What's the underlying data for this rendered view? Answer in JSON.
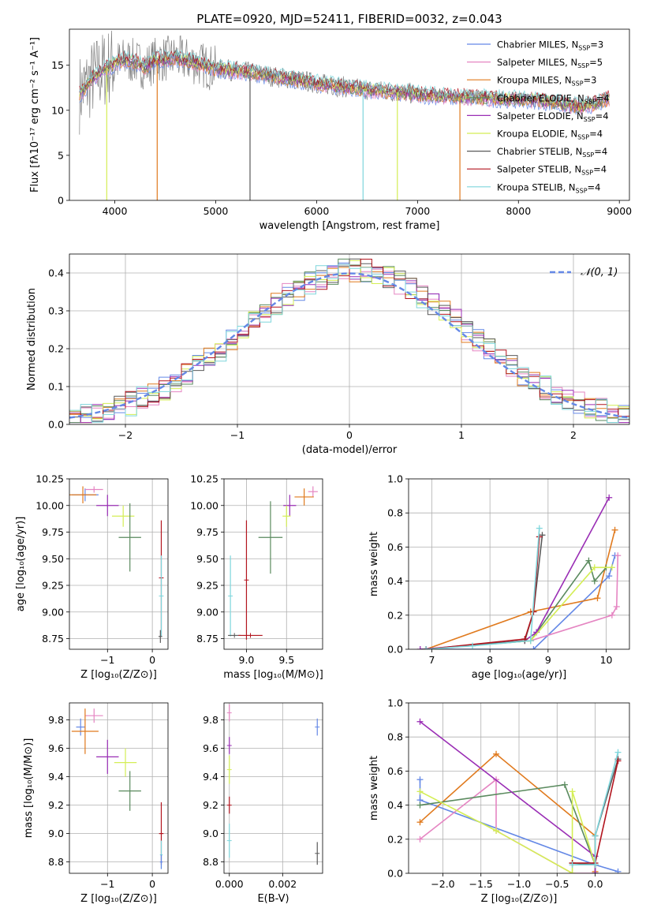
{
  "chart_data": [
    {
      "id": "spectrum",
      "type": "line",
      "title": "PLATE=0920, MJD=52411, FIBERID=0032, z=0.043",
      "xlabel": "wavelength [Angstrom, rest frame]",
      "ylabel": "Flux [fλ10⁻¹⁷ erg cm⁻² s⁻¹ A⁻¹]",
      "xlim": [
        3550,
        9100
      ],
      "ylim": [
        0,
        19
      ],
      "xticks": [
        4000,
        5000,
        6000,
        7000,
        8000,
        9000
      ],
      "yticks": [
        0,
        5,
        10,
        15
      ],
      "grid": false,
      "legend_position": "top-right",
      "data_series": {
        "name": "data",
        "color": "#808080"
      },
      "model_continuum": {
        "x": [
          3650,
          3700,
          3800,
          3900,
          4000,
          4100,
          4200,
          4300,
          4400,
          4500,
          4600,
          4700,
          4800,
          4900,
          5000,
          5200,
          5400,
          5600,
          5800,
          6000,
          6200,
          6400,
          6600,
          6800,
          7000,
          7200,
          7400,
          7600,
          7800,
          8000,
          8200,
          8400,
          8600,
          8800,
          8900
        ],
        "y": [
          11.8,
          12.5,
          13.8,
          14.6,
          15.2,
          15.6,
          15.4,
          14.8,
          15.6,
          15.7,
          15.8,
          15.6,
          15.3,
          14.9,
          14.6,
          14.4,
          14.1,
          13.7,
          13.4,
          13.0,
          12.7,
          12.4,
          12.2,
          12.0,
          11.8,
          11.6,
          11.5,
          11.4,
          11.3,
          11.2,
          11.1,
          10.8,
          10.4,
          10.9,
          11.3
        ]
      },
      "dips": [
        {
          "series": "Kroupa ELODIE",
          "x": 3920
        },
        {
          "series": "Kroupa MILES",
          "x": 4420
        },
        {
          "series": "Chabrier STELIB",
          "x": 5340
        },
        {
          "series": "Kroupa STELIB",
          "x": 6460
        },
        {
          "series": "Kroupa ELODIE",
          "x": 6800
        },
        {
          "series": "Kroupa MILES",
          "x": 7420
        }
      ],
      "series": [
        {
          "name": "Chabrier MILES, N",
          "n_ssp": "3",
          "color": "#6488e6"
        },
        {
          "name": "Salpeter MILES, N",
          "n_ssp": "5",
          "color": "#e585c2"
        },
        {
          "name": "Kroupa MILES, N",
          "n_ssp": "3",
          "color": "#e07a1e"
        },
        {
          "name": "Chabrier ELODIE, N",
          "n_ssp": "4",
          "color": "#5a8a5e"
        },
        {
          "name": "Salpeter ELODIE, N",
          "n_ssp": "4",
          "color": "#9a2eb5"
        },
        {
          "name": "Kroupa ELODIE, N",
          "n_ssp": "4",
          "color": "#d4ee55"
        },
        {
          "name": "Chabrier STELIB, N",
          "n_ssp": "4",
          "color": "#5a5a5a"
        },
        {
          "name": "Salpeter STELIB, N",
          "n_ssp": "4",
          "color": "#b2141e"
        },
        {
          "name": "Kroupa STELIB, N",
          "n_ssp": "4",
          "color": "#7ed6dc"
        }
      ]
    },
    {
      "id": "residuals",
      "type": "histogram",
      "xlabel": "(data-model)/error",
      "ylabel": "Normed distribution",
      "xlim": [
        -2.5,
        2.5
      ],
      "ylim": [
        0,
        0.45
      ],
      "xticks": [
        -2,
        -1,
        0,
        1,
        2
      ],
      "yticks": [
        0.0,
        0.1,
        0.2,
        0.3,
        0.4
      ],
      "grid": true,
      "bin_width": 0.1,
      "legend_label": "𝒩(0, 1)",
      "legend_position": "top-right",
      "reference_curve": {
        "mean": 0,
        "sigma": 1,
        "color": "#6488e6"
      }
    },
    {
      "id": "age-vs-Z",
      "type": "errorbar",
      "xlabel": "Z [log₁₀(Z/Z⊙)]",
      "ylabel": "age  [log₁₀(age/yr)]",
      "xlim": [
        -1.85,
        0.35
      ],
      "ylim": [
        8.65,
        10.25
      ],
      "xticks": [
        -1,
        0
      ],
      "yticks": [
        8.75,
        9.0,
        9.25,
        9.5,
        9.75,
        10.0,
        10.25
      ],
      "grid": true,
      "points": [
        {
          "series": "Chabrier MILES",
          "x": -1.5,
          "y": 10.1,
          "xerr": 0.3,
          "yerr": 0.06
        },
        {
          "series": "Salpeter MILES",
          "x": -1.3,
          "y": 10.15,
          "xerr": 0.2,
          "yerr": 0.03
        },
        {
          "series": "Kroupa MILES",
          "x": -1.55,
          "y": 10.1,
          "xerr": 0.3,
          "yerr": 0.08
        },
        {
          "series": "Salpeter ELODIE",
          "x": -1.0,
          "y": 10.0,
          "xerr": 0.25,
          "yerr": 0.1
        },
        {
          "series": "Kroupa ELODIE",
          "x": -0.65,
          "y": 9.9,
          "xerr": 0.25,
          "yerr": 0.1
        },
        {
          "series": "Chabrier ELODIE",
          "x": -0.5,
          "y": 9.7,
          "xerr": 0.25,
          "yerr": 0.32
        },
        {
          "series": "Salpeter STELIB",
          "x": 0.2,
          "y": 9.32,
          "xerr": 0.0,
          "yerr": 0.54
        },
        {
          "series": "Kroupa STELIB",
          "x": 0.2,
          "y": 9.15,
          "xerr": 0.0,
          "yerr": 0.38
        },
        {
          "series": "Chabrier STELIB",
          "x": 0.18,
          "y": 8.77,
          "xerr": 0.04,
          "yerr": 0.06
        }
      ]
    },
    {
      "id": "age-vs-mass",
      "type": "errorbar",
      "xlabel": "mass [log₁₀(M/M⊙)]",
      "xlim": [
        8.72,
        9.95
      ],
      "ylim": [
        8.65,
        10.25
      ],
      "xticks": [
        9.0,
        9.5
      ],
      "yticks": [
        8.75,
        9.0,
        9.25,
        9.5,
        9.75,
        10.0,
        10.25
      ],
      "grid": true,
      "points": [
        {
          "series": "Salpeter MILES",
          "x": 9.83,
          "y": 10.13,
          "xerr": 0.06,
          "yerr": 0.05
        },
        {
          "series": "Kroupa MILES",
          "x": 9.72,
          "y": 10.08,
          "xerr": 0.12,
          "yerr": 0.08
        },
        {
          "series": "Salpeter ELODIE",
          "x": 9.54,
          "y": 10.0,
          "xerr": 0.08,
          "yerr": 0.1
        },
        {
          "series": "Kroupa ELODIE",
          "x": 9.5,
          "y": 9.9,
          "xerr": 0.05,
          "yerr": 0.1
        },
        {
          "series": "Chabrier ELODIE",
          "x": 9.3,
          "y": 9.7,
          "xerr": 0.15,
          "yerr": 0.34
        },
        {
          "series": "Salpeter STELIB",
          "x": 9.0,
          "y": 9.3,
          "xerr": 0.0,
          "yerr": 0.56
        },
        {
          "series": "Kroupa STELIB",
          "x": 8.8,
          "y": 9.15,
          "xerr": 0.0,
          "yerr": 0.38
        },
        {
          "series": "Chabrier STELIB",
          "x": 8.85,
          "y": 8.78,
          "xerr": 0.08,
          "yerr": 0.0
        },
        {
          "series": "Salpeter STELIB",
          "x": 9.05,
          "y": 8.78,
          "xerr": 0.15,
          "yerr": 0.0
        }
      ]
    },
    {
      "id": "weight-vs-age",
      "type": "line",
      "xlabel": "age  [log₁₀(age/yr)]",
      "ylabel": "mass weight",
      "xlim": [
        6.6,
        10.4
      ],
      "ylim": [
        0,
        1
      ],
      "xticks": [
        7,
        8,
        9,
        10
      ],
      "yticks": [
        0.0,
        0.2,
        0.4,
        0.6,
        0.8,
        1.0
      ],
      "grid": true,
      "series": [
        {
          "name": "Chabrier MILES",
          "x": [
            6.9,
            8.75,
            10.05,
            10.15
          ],
          "y": [
            0.0,
            0.0,
            0.43,
            0.55
          ]
        },
        {
          "name": "Salpeter MILES",
          "x": [
            6.9,
            8.7,
            10.1,
            10.18,
            10.2
          ],
          "y": [
            0.0,
            0.05,
            0.2,
            0.25,
            0.55
          ]
        },
        {
          "name": "Kroupa MILES",
          "x": [
            6.9,
            8.7,
            9.85,
            10.15
          ],
          "y": [
            0.0,
            0.22,
            0.3,
            0.7
          ]
        },
        {
          "name": "Chabrier ELODIE",
          "x": [
            6.9,
            8.7,
            9.7,
            9.8,
            10.0
          ],
          "y": [
            0.0,
            0.05,
            0.52,
            0.4,
            0.48
          ]
        },
        {
          "name": "Salpeter ELODIE",
          "x": [
            6.8,
            8.6,
            8.8,
            10.05
          ],
          "y": [
            0.0,
            0.05,
            0.1,
            0.89
          ]
        },
        {
          "name": "Kroupa ELODIE",
          "x": [
            6.9,
            8.7,
            9.8,
            10.1
          ],
          "y": [
            0.0,
            0.05,
            0.48,
            0.48
          ]
        },
        {
          "name": "Chabrier STELIB",
          "x": [
            6.9,
            8.6,
            8.75,
            8.9
          ],
          "y": [
            0.0,
            0.05,
            0.22,
            0.67
          ]
        },
        {
          "name": "Salpeter STELIB",
          "x": [
            6.9,
            8.6,
            8.75,
            8.85
          ],
          "y": [
            0.0,
            0.06,
            0.22,
            0.66
          ]
        },
        {
          "name": "Kroupa STELIB",
          "x": [
            6.9,
            7.7,
            8.7,
            8.85
          ],
          "y": [
            0.0,
            0.02,
            0.05,
            0.71
          ]
        }
      ]
    },
    {
      "id": "mass-vs-Z",
      "type": "errorbar",
      "xlabel": "Z [log₁₀(Z/Z⊙)]",
      "ylabel": "mass [log₁₀(M/M⊙)]",
      "xlim": [
        -1.85,
        0.35
      ],
      "ylim": [
        8.72,
        9.92
      ],
      "xticks": [
        -1,
        0
      ],
      "yticks": [
        8.8,
        9.0,
        9.2,
        9.4,
        9.6,
        9.8
      ],
      "grid": true,
      "points": [
        {
          "series": "Chabrier MILES",
          "x": -1.6,
          "y": 9.75,
          "xerr": 0.1,
          "yerr": 0.06
        },
        {
          "series": "Salpeter MILES",
          "x": -1.3,
          "y": 9.83,
          "xerr": 0.2,
          "yerr": 0.05
        },
        {
          "series": "Kroupa MILES",
          "x": -1.5,
          "y": 9.72,
          "xerr": 0.3,
          "yerr": 0.16
        },
        {
          "series": "Salpeter ELODIE",
          "x": -1.0,
          "y": 9.54,
          "xerr": 0.25,
          "yerr": 0.12
        },
        {
          "series": "Kroupa ELODIE",
          "x": -0.6,
          "y": 9.5,
          "xerr": 0.25,
          "yerr": 0.1
        },
        {
          "series": "Chabrier ELODIE",
          "x": -0.5,
          "y": 9.3,
          "xerr": 0.25,
          "yerr": 0.14
        },
        {
          "series": "Salpeter STELIB",
          "x": 0.2,
          "y": 9.0,
          "xerr": 0.05,
          "yerr": 0.22
        },
        {
          "series": "Kroupa STELIB",
          "x": 0.2,
          "y": 8.85,
          "xerr": 0.03,
          "yerr": 0.1
        },
        {
          "series": "Chabrier MILES",
          "x": 0.2,
          "y": 8.8,
          "xerr": 0.03,
          "yerr": 0.05
        }
      ]
    },
    {
      "id": "mass-vs-EBV",
      "type": "errorbar",
      "xlabel": "E(B-V)",
      "xlim": [
        -0.0002,
        0.0035
      ],
      "ylim": [
        8.72,
        9.92
      ],
      "xticks": [
        0.0,
        0.002
      ],
      "xtick_labels": [
        "0.000",
        "0.002"
      ],
      "yticks": [
        8.8,
        9.0,
        9.2,
        9.4,
        9.6,
        9.8
      ],
      "grid": true,
      "points": [
        {
          "series": "Salpeter MILES",
          "x": 0.0,
          "y": 9.85,
          "xerr": 0.0,
          "yerr": 0.06
        },
        {
          "series": "Salpeter ELODIE",
          "x": 0.0,
          "y": 9.62,
          "xerr": 0.0,
          "yerr": 0.06
        },
        {
          "series": "Kroupa ELODIE",
          "x": 0.0,
          "y": 9.45,
          "xerr": 0.0,
          "yerr": 0.1
        },
        {
          "series": "Salpeter STELIB",
          "x": 0.0,
          "y": 9.2,
          "xerr": 0.0,
          "yerr": 0.06
        },
        {
          "series": "Kroupa STELIB",
          "x": 0.0,
          "y": 8.95,
          "xerr": 0.0,
          "yerr": 0.12
        },
        {
          "series": "Chabrier MILES",
          "x": 0.0033,
          "y": 9.75,
          "xerr": 0.0,
          "yerr": 0.06
        },
        {
          "series": "Chabrier STELIB",
          "x": 0.0033,
          "y": 8.86,
          "xerr": 0.0,
          "yerr": 0.08
        }
      ]
    },
    {
      "id": "weight-vs-Z",
      "type": "line",
      "xlabel": "Z [log₁₀(Z/Z⊙)]",
      "ylabel": "mass weight",
      "xlim": [
        -2.45,
        0.45
      ],
      "ylim": [
        0,
        1
      ],
      "xticks": [
        -2.0,
        -1.5,
        -1.0,
        -0.5,
        0.0
      ],
      "yticks": [
        0.0,
        0.2,
        0.4,
        0.6,
        0.8,
        1.0
      ],
      "grid": true,
      "series": [
        {
          "name": "Chabrier MILES",
          "x": [
            -2.3,
            -2.3,
            0.0,
            0.3
          ],
          "y": [
            0.55,
            0.43,
            0.05,
            0.01
          ]
        },
        {
          "name": "Salpeter MILES",
          "x": [
            -2.3,
            -1.3,
            -1.3,
            -0.3,
            0.0
          ],
          "y": [
            0.2,
            0.55,
            0.25,
            0.0,
            0.0
          ]
        },
        {
          "name": "Kroupa MILES",
          "x": [
            -2.3,
            -1.3,
            0.0,
            0.0
          ],
          "y": [
            0.3,
            0.7,
            0.22,
            0.01
          ]
        },
        {
          "name": "Chabrier ELODIE",
          "x": [
            -2.3,
            -0.4,
            0.0,
            0.0
          ],
          "y": [
            0.4,
            0.52,
            0.05,
            0.0
          ]
        },
        {
          "name": "Salpeter ELODIE",
          "x": [
            -2.3,
            0.0,
            0.0,
            0.0
          ],
          "y": [
            0.89,
            0.1,
            0.05,
            0.0
          ]
        },
        {
          "name": "Kroupa ELODIE",
          "x": [
            -2.3,
            -1.3,
            -0.3,
            -0.3,
            0.0
          ],
          "y": [
            0.48,
            0.25,
            0.0,
            0.48,
            0.05
          ]
        },
        {
          "name": "Chabrier STELIB",
          "x": [
            -0.3,
            0.0,
            0.0,
            0.3
          ],
          "y": [
            0.06,
            0.05,
            0.22,
            0.67
          ]
        },
        {
          "name": "Salpeter STELIB",
          "x": [
            -0.3,
            0.0,
            0.3
          ],
          "y": [
            0.06,
            0.06,
            0.66
          ]
        },
        {
          "name": "Kroupa STELIB",
          "x": [
            -0.3,
            0.0,
            0.0,
            0.3
          ],
          "y": [
            0.05,
            0.05,
            0.22,
            0.71
          ]
        }
      ]
    }
  ]
}
